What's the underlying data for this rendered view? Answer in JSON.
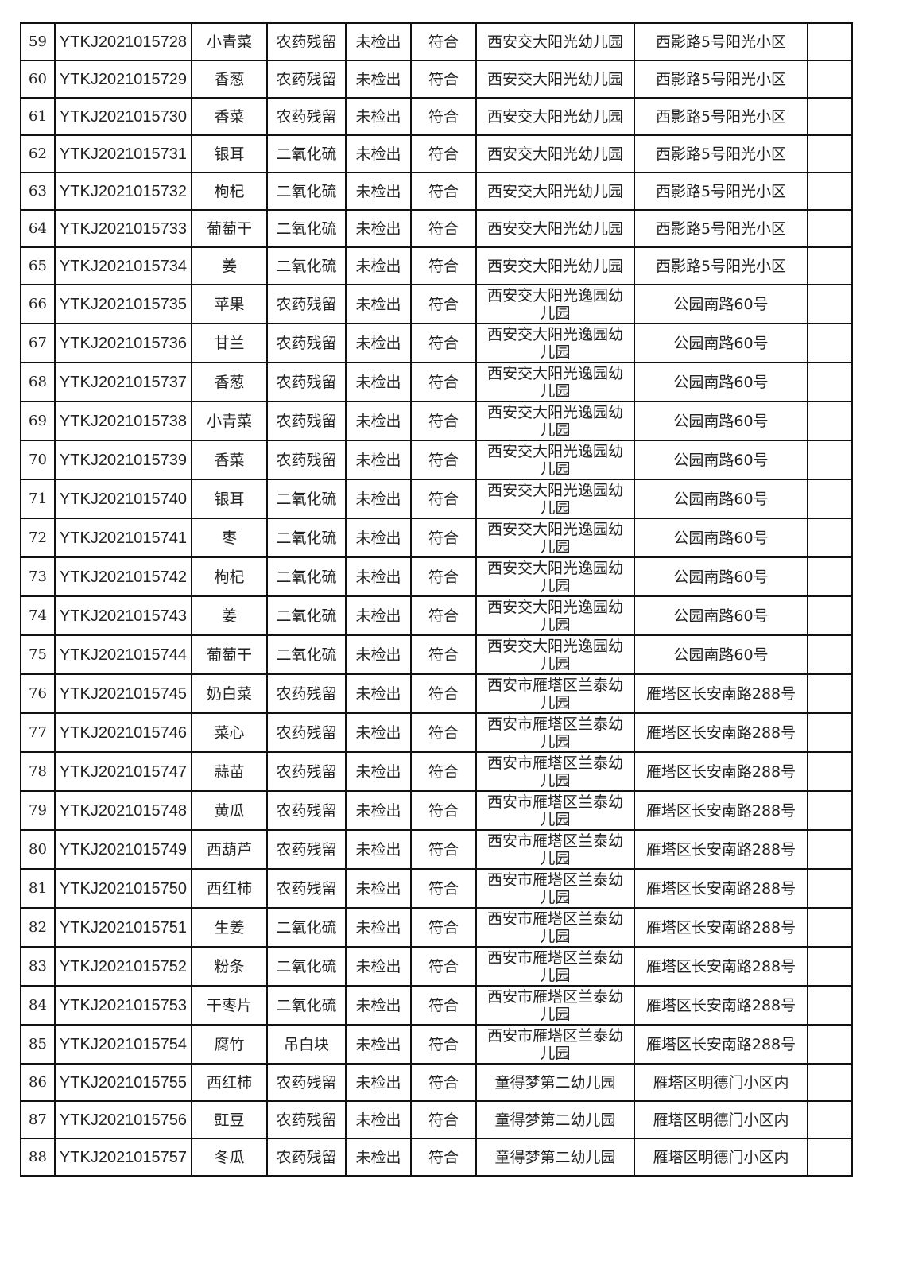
{
  "table": {
    "rows": [
      [
        "59",
        "YTKJ2021015728",
        "小青菜",
        "农药残留",
        "未检出",
        "符合",
        "西安交大阳光幼儿园",
        "西影路5号阳光小区",
        ""
      ],
      [
        "60",
        "YTKJ2021015729",
        "香葱",
        "农药残留",
        "未检出",
        "符合",
        "西安交大阳光幼儿园",
        "西影路5号阳光小区",
        ""
      ],
      [
        "61",
        "YTKJ2021015730",
        "香菜",
        "农药残留",
        "未检出",
        "符合",
        "西安交大阳光幼儿园",
        "西影路5号阳光小区",
        ""
      ],
      [
        "62",
        "YTKJ2021015731",
        "银耳",
        "二氧化硫",
        "未检出",
        "符合",
        "西安交大阳光幼儿园",
        "西影路5号阳光小区",
        ""
      ],
      [
        "63",
        "YTKJ2021015732",
        "枸杞",
        "二氧化硫",
        "未检出",
        "符合",
        "西安交大阳光幼儿园",
        "西影路5号阳光小区",
        ""
      ],
      [
        "64",
        "YTKJ2021015733",
        "葡萄干",
        "二氧化硫",
        "未检出",
        "符合",
        "西安交大阳光幼儿园",
        "西影路5号阳光小区",
        ""
      ],
      [
        "65",
        "YTKJ2021015734",
        "姜",
        "二氧化硫",
        "未检出",
        "符合",
        "西安交大阳光幼儿园",
        "西影路5号阳光小区",
        ""
      ],
      [
        "66",
        "YTKJ2021015735",
        "苹果",
        "农药残留",
        "未检出",
        "符合",
        "西安交大阳光逸园幼儿园",
        "公园南路60号",
        ""
      ],
      [
        "67",
        "YTKJ2021015736",
        "甘兰",
        "农药残留",
        "未检出",
        "符合",
        "西安交大阳光逸园幼儿园",
        "公园南路60号",
        ""
      ],
      [
        "68",
        "YTKJ2021015737",
        "香葱",
        "农药残留",
        "未检出",
        "符合",
        "西安交大阳光逸园幼儿园",
        "公园南路60号",
        ""
      ],
      [
        "69",
        "YTKJ2021015738",
        "小青菜",
        "农药残留",
        "未检出",
        "符合",
        "西安交大阳光逸园幼儿园",
        "公园南路60号",
        ""
      ],
      [
        "70",
        "YTKJ2021015739",
        "香菜",
        "农药残留",
        "未检出",
        "符合",
        "西安交大阳光逸园幼儿园",
        "公园南路60号",
        ""
      ],
      [
        "71",
        "YTKJ2021015740",
        "银耳",
        "二氧化硫",
        "未检出",
        "符合",
        "西安交大阳光逸园幼儿园",
        "公园南路60号",
        ""
      ],
      [
        "72",
        "YTKJ2021015741",
        "枣",
        "二氧化硫",
        "未检出",
        "符合",
        "西安交大阳光逸园幼儿园",
        "公园南路60号",
        ""
      ],
      [
        "73",
        "YTKJ2021015742",
        "枸杞",
        "二氧化硫",
        "未检出",
        "符合",
        "西安交大阳光逸园幼儿园",
        "公园南路60号",
        ""
      ],
      [
        "74",
        "YTKJ2021015743",
        "姜",
        "二氧化硫",
        "未检出",
        "符合",
        "西安交大阳光逸园幼儿园",
        "公园南路60号",
        ""
      ],
      [
        "75",
        "YTKJ2021015744",
        "葡萄干",
        "二氧化硫",
        "未检出",
        "符合",
        "西安交大阳光逸园幼儿园",
        "公园南路60号",
        ""
      ],
      [
        "76",
        "YTKJ2021015745",
        "奶白菜",
        "农药残留",
        "未检出",
        "符合",
        "西安市雁塔区兰泰幼儿园",
        "雁塔区长安南路288号",
        ""
      ],
      [
        "77",
        "YTKJ2021015746",
        "菜心",
        "农药残留",
        "未检出",
        "符合",
        "西安市雁塔区兰泰幼儿园",
        "雁塔区长安南路288号",
        ""
      ],
      [
        "78",
        "YTKJ2021015747",
        "蒜苗",
        "农药残留",
        "未检出",
        "符合",
        "西安市雁塔区兰泰幼儿园",
        "雁塔区长安南路288号",
        ""
      ],
      [
        "79",
        "YTKJ2021015748",
        "黄瓜",
        "农药残留",
        "未检出",
        "符合",
        "西安市雁塔区兰泰幼儿园",
        "雁塔区长安南路288号",
        ""
      ],
      [
        "80",
        "YTKJ2021015749",
        "西葫芦",
        "农药残留",
        "未检出",
        "符合",
        "西安市雁塔区兰泰幼儿园",
        "雁塔区长安南路288号",
        ""
      ],
      [
        "81",
        "YTKJ2021015750",
        "西红柿",
        "农药残留",
        "未检出",
        "符合",
        "西安市雁塔区兰泰幼儿园",
        "雁塔区长安南路288号",
        ""
      ],
      [
        "82",
        "YTKJ2021015751",
        "生姜",
        "二氧化硫",
        "未检出",
        "符合",
        "西安市雁塔区兰泰幼儿园",
        "雁塔区长安南路288号",
        ""
      ],
      [
        "83",
        "YTKJ2021015752",
        "粉条",
        "二氧化硫",
        "未检出",
        "符合",
        "西安市雁塔区兰泰幼儿园",
        "雁塔区长安南路288号",
        ""
      ],
      [
        "84",
        "YTKJ2021015753",
        "干枣片",
        "二氧化硫",
        "未检出",
        "符合",
        "西安市雁塔区兰泰幼儿园",
        "雁塔区长安南路288号",
        ""
      ],
      [
        "85",
        "YTKJ2021015754",
        "腐竹",
        "吊白块",
        "未检出",
        "符合",
        "西安市雁塔区兰泰幼儿园",
        "雁塔区长安南路288号",
        ""
      ],
      [
        "86",
        "YTKJ2021015755",
        "西红柿",
        "农药残留",
        "未检出",
        "符合",
        "童得梦第二幼儿园",
        "雁塔区明德门小区内",
        ""
      ],
      [
        "87",
        "YTKJ2021015756",
        "豇豆",
        "农药残留",
        "未检出",
        "符合",
        "童得梦第二幼儿园",
        "雁塔区明德门小区内",
        ""
      ],
      [
        "88",
        "YTKJ2021015757",
        "冬瓜",
        "农药残留",
        "未检出",
        "符合",
        "童得梦第二幼儿园",
        "雁塔区明德门小区内",
        ""
      ]
    ]
  }
}
